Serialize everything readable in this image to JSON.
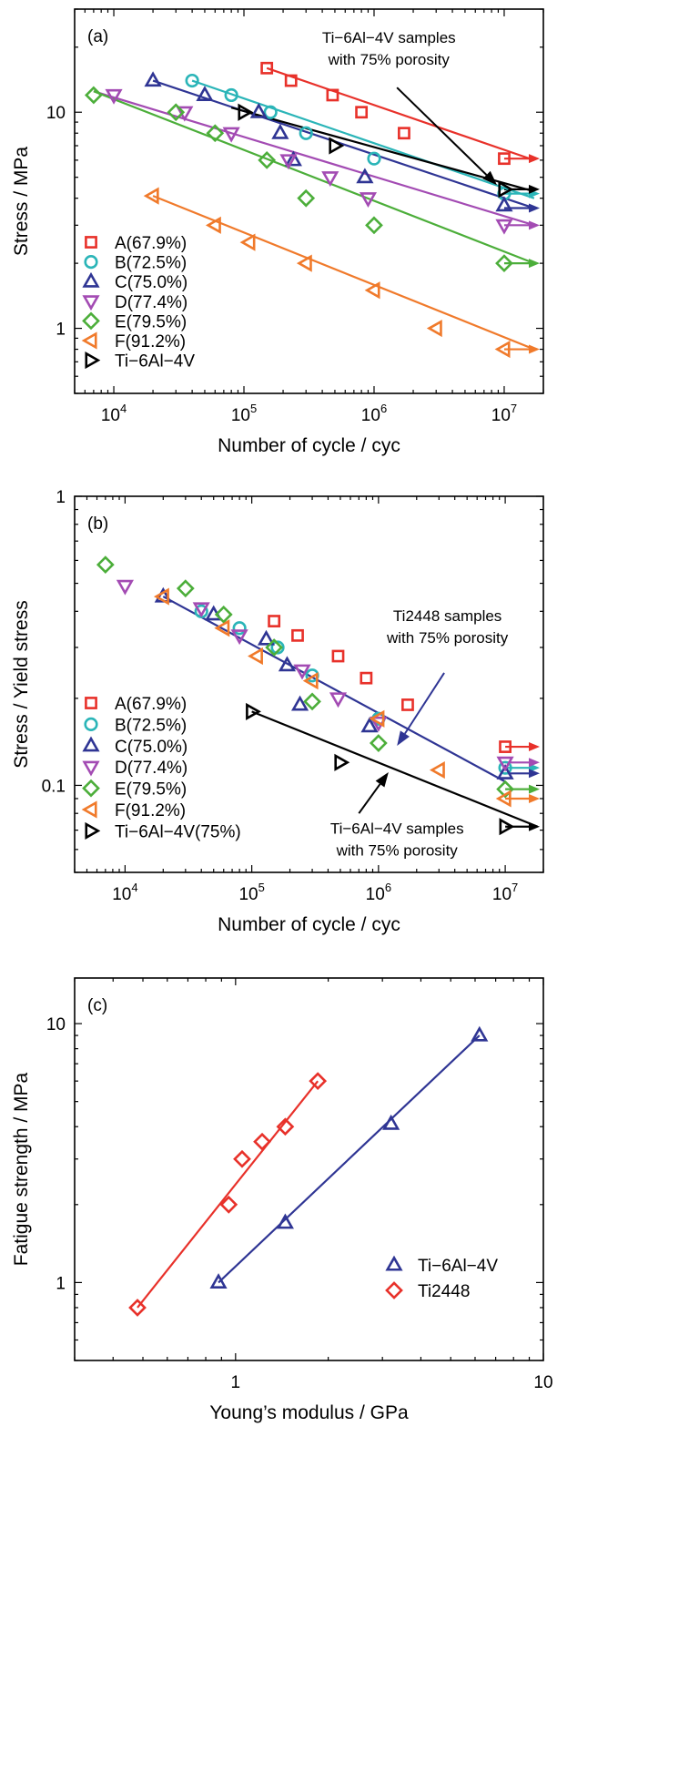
{
  "chart_data": [
    {
      "panel": "(a)",
      "type": "scatter",
      "xscale": "log",
      "yscale": "log",
      "xlim": [
        5000,
        20000000
      ],
      "ylim": [
        0.5,
        30
      ],
      "xlabel": "Number of cycle / cyc",
      "ylabel": "Stress / MPa",
      "xticks": [
        {
          "v": 10000,
          "b": "10",
          "e": "4"
        },
        {
          "v": 100000,
          "b": "10",
          "e": "5"
        },
        {
          "v": 1000000,
          "b": "10",
          "e": "6"
        },
        {
          "v": 10000000,
          "b": "10",
          "e": "7"
        }
      ],
      "yticks": [
        {
          "v": 1,
          "t": "1"
        },
        {
          "v": 10,
          "t": "10"
        }
      ],
      "legend_position": "bottom-left",
      "annotations": [
        {
          "lines": [
            "Ti−6Al−4V samples",
            "with 75% porosity"
          ],
          "color": "#000000",
          "text_at": [
            1300000,
            21
          ],
          "arrow_from": [
            1500000,
            13
          ],
          "arrow_to": [
            8800000,
            4.6
          ]
        }
      ],
      "series": [
        {
          "name": "A(67.9%)",
          "marker": "square",
          "color": "#e8312a",
          "points": [
            [
              150000,
              16
            ],
            [
              230000,
              14
            ],
            [
              480000,
              12
            ],
            [
              800000,
              10
            ],
            [
              1700000,
              8
            ],
            [
              10000000,
              6.1
            ]
          ],
          "fit": [
            [
              150000,
              16
            ],
            [
              17000000,
              6.0
            ]
          ],
          "runout": [
            [
              10000000,
              6.1
            ]
          ]
        },
        {
          "name": "B(72.5%)",
          "marker": "circle",
          "color": "#2bb5b8",
          "points": [
            [
              40000,
              14
            ],
            [
              80000,
              12
            ],
            [
              160000,
              10
            ],
            [
              300000,
              8
            ],
            [
              1000000,
              6.1
            ],
            [
              10000000,
              4.2
            ]
          ],
          "fit": [
            [
              40000,
              14
            ],
            [
              17000000,
              4.0
            ]
          ],
          "runout": [
            [
              10000000,
              4.2
            ]
          ]
        },
        {
          "name": "C(75.0%)",
          "marker": "triangle-up",
          "color": "#2f3594",
          "points": [
            [
              20000,
              14
            ],
            [
              50000,
              12
            ],
            [
              130000,
              10
            ],
            [
              190000,
              8
            ],
            [
              240000,
              6
            ],
            [
              850000,
              5
            ],
            [
              10000000,
              3.7
            ]
          ],
          "fit": [
            [
              20000,
              14
            ],
            [
              17000000,
              3.6
            ]
          ],
          "runout": [
            [
              10000000,
              3.6
            ]
          ]
        },
        {
          "name": "D(77.4%)",
          "marker": "triangle-down",
          "color": "#a34bb3",
          "points": [
            [
              10000,
              12
            ],
            [
              35000,
              10
            ],
            [
              80000,
              8
            ],
            [
              220000,
              6
            ],
            [
              460000,
              5
            ],
            [
              900000,
              4
            ],
            [
              10000000,
              3.0
            ]
          ],
          "fit": [
            [
              7000,
              12.5
            ],
            [
              17000000,
              3.0
            ]
          ],
          "runout": [
            [
              10000000,
              3.0
            ]
          ]
        },
        {
          "name": "E(79.5%)",
          "marker": "diamond",
          "color": "#4cae3a",
          "points": [
            [
              7000,
              12
            ],
            [
              30000,
              10
            ],
            [
              60000,
              8
            ],
            [
              150000,
              6
            ],
            [
              300000,
              4
            ],
            [
              1000000,
              3
            ],
            [
              10000000,
              2
            ]
          ],
          "fit": [
            [
              7000,
              12.5
            ],
            [
              17000000,
              2.0
            ]
          ],
          "runout": [
            [
              10000000,
              2
            ]
          ]
        },
        {
          "name": "F(91.2%)",
          "marker": "triangle-left",
          "color": "#f07a2b",
          "points": [
            [
              20000,
              4.1
            ],
            [
              60000,
              3.0
            ],
            [
              110000,
              2.5
            ],
            [
              300000,
              2.0
            ],
            [
              1000000,
              1.5
            ],
            [
              3000000,
              1.0
            ],
            [
              10000000,
              0.8
            ]
          ],
          "fit": [
            [
              20000,
              4.1
            ],
            [
              17000000,
              0.8
            ]
          ],
          "runout": [
            [
              10000000,
              0.8
            ]
          ]
        },
        {
          "name": "Ti−6Al−4V",
          "marker": "triangle-right",
          "color": "#000000",
          "points": [
            [
              100000,
              10
            ],
            [
              500000,
              7
            ],
            [
              10000000,
              4.4
            ]
          ],
          "fit": [
            [
              80000,
              10.5
            ],
            [
              17000000,
              4.3
            ]
          ],
          "runout": [
            [
              10000000,
              4.4
            ]
          ]
        }
      ]
    },
    {
      "panel": "(b)",
      "type": "scatter",
      "xscale": "log",
      "yscale": "log",
      "xlim": [
        4000,
        20000000
      ],
      "ylim": [
        0.05,
        1
      ],
      "xlabel": "Number of cycle / cyc",
      "ylabel": "Stress / Yield stress",
      "xticks": [
        {
          "v": 10000,
          "b": "10",
          "e": "4"
        },
        {
          "v": 100000,
          "b": "10",
          "e": "5"
        },
        {
          "v": 1000000,
          "b": "10",
          "e": "6"
        },
        {
          "v": 10000000,
          "b": "10",
          "e": "7"
        }
      ],
      "yticks": [
        {
          "v": 0.1,
          "t": "0.1"
        },
        {
          "v": 1,
          "t": "1"
        }
      ],
      "legend_position": "bottom-left",
      "annotations": [
        {
          "lines": [
            "Ti2448 samples",
            "with 75% porosity"
          ],
          "color": "#2f3594",
          "text_at": [
            3500000,
            0.37
          ],
          "arrow_from": [
            3300000,
            0.245
          ],
          "arrow_to": [
            1400000,
            0.137
          ]
        },
        {
          "lines": [
            "Ti−6Al−4V samples",
            "with 75% porosity"
          ],
          "color": "#000000",
          "text_at": [
            1400000,
            0.068
          ],
          "arrow_from": [
            700000,
            0.08
          ],
          "arrow_to": [
            1200000,
            0.111
          ]
        }
      ],
      "series": [
        {
          "name": "A(67.9%)",
          "marker": "square",
          "color": "#e8312a",
          "points": [
            [
              150000,
              0.37
            ],
            [
              230000,
              0.33
            ],
            [
              480000,
              0.28
            ],
            [
              800000,
              0.235
            ],
            [
              1700000,
              0.19
            ],
            [
              10000000,
              0.136
            ]
          ],
          "fit": [],
          "runout": [
            [
              10000000,
              0.136
            ]
          ]
        },
        {
          "name": "B(72.5%)",
          "marker": "circle",
          "color": "#2bb5b8",
          "points": [
            [
              40000,
              0.4
            ],
            [
              80000,
              0.35
            ],
            [
              160000,
              0.3
            ],
            [
              300000,
              0.24
            ],
            [
              1000000,
              0.17
            ],
            [
              10000000,
              0.115
            ]
          ],
          "fit": [],
          "runout": [
            [
              10000000,
              0.115
            ]
          ]
        },
        {
          "name": "C(75.0%)",
          "marker": "triangle-up",
          "color": "#2f3594",
          "points": [
            [
              20000,
              0.45
            ],
            [
              50000,
              0.39
            ],
            [
              130000,
              0.32
            ],
            [
              190000,
              0.26
            ],
            [
              240000,
              0.19
            ],
            [
              850000,
              0.16
            ],
            [
              10000000,
              0.11
            ]
          ],
          "fit": [
            [
              20000,
              0.45
            ],
            [
              10000000,
              0.103
            ]
          ],
          "runout": [
            [
              10000000,
              0.11
            ]
          ]
        },
        {
          "name": "D(77.4%)",
          "marker": "triangle-down",
          "color": "#a34bb3",
          "points": [
            [
              10000,
              0.49
            ],
            [
              40000,
              0.41
            ],
            [
              80000,
              0.33
            ],
            [
              250000,
              0.25
            ],
            [
              480000,
              0.2
            ],
            [
              1000000,
              0.165
            ],
            [
              10000000,
              0.12
            ]
          ],
          "fit": [],
          "runout": [
            [
              10000000,
              0.12
            ]
          ]
        },
        {
          "name": "E(79.5%)",
          "marker": "diamond",
          "color": "#4cae3a",
          "points": [
            [
              7000,
              0.58
            ],
            [
              30000,
              0.48
            ],
            [
              60000,
              0.39
            ],
            [
              150000,
              0.3
            ],
            [
              300000,
              0.195
            ],
            [
              1000000,
              0.14
            ],
            [
              10000000,
              0.097
            ]
          ],
          "fit": [],
          "runout": [
            [
              10000000,
              0.097
            ]
          ]
        },
        {
          "name": "F(91.2%)",
          "marker": "triangle-left",
          "color": "#f07a2b",
          "points": [
            [
              20000,
              0.45
            ],
            [
              60000,
              0.35
            ],
            [
              110000,
              0.28
            ],
            [
              300000,
              0.23
            ],
            [
              1000000,
              0.17
            ],
            [
              3000000,
              0.113
            ],
            [
              10000000,
              0.09
            ]
          ],
          "fit": [],
          "runout": [
            [
              10000000,
              0.09
            ]
          ]
        },
        {
          "name": "Ti−6Al−4V(75%)",
          "marker": "triangle-right",
          "color": "#000000",
          "points": [
            [
              100000,
              0.18
            ],
            [
              500000,
              0.12
            ],
            [
              10000000,
              0.072
            ]
          ],
          "fit": [
            [
              100000,
              0.18
            ],
            [
              18000000,
              0.072
            ]
          ],
          "runout": [
            [
              10000000,
              0.072
            ]
          ]
        }
      ]
    },
    {
      "panel": "(c)",
      "type": "scatter",
      "xscale": "log",
      "yscale": "log",
      "xlim": [
        0.3,
        10
      ],
      "ylim": [
        0.5,
        15
      ],
      "xlabel": "Young’s modulus / GPa",
      "ylabel": "Fatigue strength / MPa",
      "xticks": [
        {
          "v": 1,
          "t": "1"
        },
        {
          "v": 10,
          "t": "10"
        }
      ],
      "yticks": [
        {
          "v": 1,
          "t": "1"
        },
        {
          "v": 10,
          "t": "10"
        }
      ],
      "legend_position": "bottom-right",
      "annotations": [],
      "series": [
        {
          "name": "Ti−6Al−4V",
          "marker": "triangle-up",
          "color": "#2f3594",
          "points": [
            [
              0.88,
              1.0
            ],
            [
              1.45,
              1.7
            ],
            [
              3.2,
              4.1
            ],
            [
              6.2,
              9.0
            ]
          ],
          "fit": [
            [
              0.88,
              1.0
            ],
            [
              6.2,
              9.0
            ]
          ],
          "runout": []
        },
        {
          "name": "Ti2448",
          "marker": "diamond",
          "color": "#e8312a",
          "points": [
            [
              0.48,
              0.8
            ],
            [
              0.95,
              2.0
            ],
            [
              1.05,
              3.0
            ],
            [
              1.22,
              3.5
            ],
            [
              1.45,
              4.0
            ],
            [
              1.85,
              6.0
            ]
          ],
          "fit": [
            [
              0.48,
              0.8
            ],
            [
              1.85,
              6.0
            ]
          ],
          "runout": []
        }
      ]
    }
  ]
}
